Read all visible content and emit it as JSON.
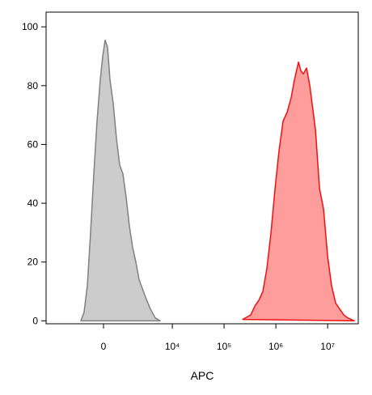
{
  "chart_data": {
    "type": "area",
    "x_label": "APC",
    "xscale": "biexponential",
    "xlim": [
      -6000,
      39000000
    ],
    "xticks": [
      0,
      {
        "value": 10000,
        "label": "10⁴"
      },
      {
        "value": 100000,
        "label": "10⁵"
      },
      {
        "value": 1000000,
        "label": "10⁶"
      },
      {
        "value": 10000000,
        "label": "10⁷"
      }
    ],
    "ylim": [
      -1,
      105
    ],
    "yticks": [
      0,
      20,
      40,
      60,
      80,
      100
    ],
    "series": [
      {
        "fill": "#cccccc",
        "color": "#808080",
        "x": [
          -1117,
          -915,
          -736,
          -571,
          -418,
          -274,
          -136,
          -34,
          68,
          170,
          274,
          418,
          571,
          736,
          915,
          1117,
          1340,
          1584,
          1868,
          2186,
          2557,
          2980,
          3722,
          4644,
          5800
        ],
        "values": [
          0,
          3,
          12,
          30,
          50,
          68,
          82,
          90,
          95.5,
          93,
          82,
          74,
          62,
          53,
          50,
          42,
          32,
          25,
          20,
          14,
          11,
          8,
          4,
          1,
          0
        ]
      },
      {
        "fill": "#ff9c9c",
        "color": "#ee1111",
        "x": [
          228000,
          327000,
          392000,
          470000,
          562000,
          672000,
          805000,
          963000,
          1153000,
          1380000,
          1652000,
          1977000,
          2284000,
          2734000,
          3046000,
          3392000,
          3917000,
          4525000,
          5820000,
          6960000,
          8330000,
          9970000,
          11900000,
          14300000,
          17100000,
          20500000,
          24500000,
          32700000
        ],
        "values": [
          0.5,
          2,
          5,
          7,
          10,
          18,
          30,
          45,
          58,
          68,
          71,
          76,
          82,
          88,
          85,
          84,
          86,
          80,
          65,
          45,
          38,
          22,
          12,
          6,
          4,
          2,
          1,
          0
        ]
      }
    ]
  }
}
